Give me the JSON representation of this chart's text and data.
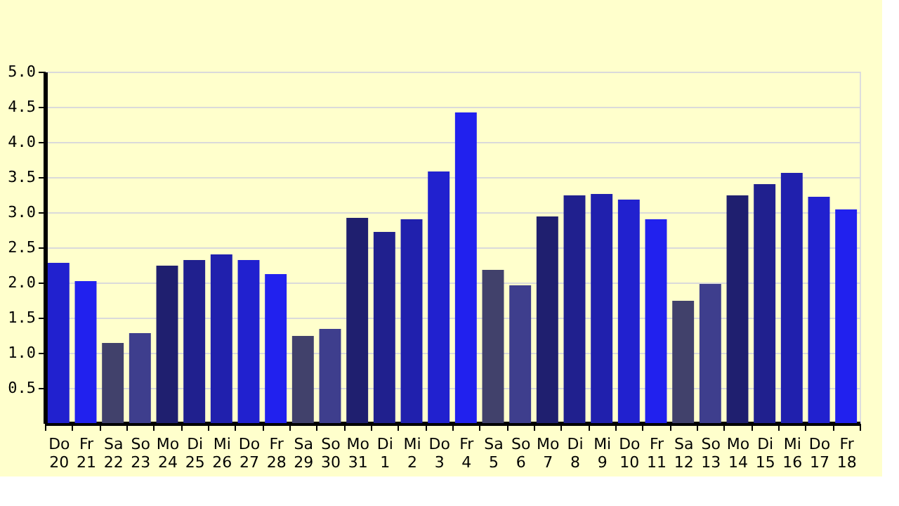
{
  "chart_data": {
    "type": "bar",
    "categories": [
      "Do 20",
      "Fr 21",
      "Sa 22",
      "So 23",
      "Mo 24",
      "Di 25",
      "Mi 26",
      "Do 27",
      "Fr 28",
      "Sa 29",
      "So 30",
      "Mo 31",
      "Di 1",
      "Mi 2",
      "Do 3",
      "Fr 4",
      "Sa 5",
      "So 6",
      "Mo 7",
      "Di 8",
      "Mi 9",
      "Do 10",
      "Fr 11",
      "Sa 12",
      "So 13",
      "Mo 14",
      "Di 15",
      "Mi 16",
      "Do 17",
      "Fr 18"
    ],
    "values": [
      2.28,
      2.02,
      1.14,
      1.28,
      2.24,
      2.32,
      2.4,
      2.32,
      2.12,
      1.24,
      1.34,
      2.92,
      2.72,
      2.9,
      3.58,
      4.42,
      2.18,
      1.96,
      2.94,
      3.24,
      3.26,
      3.18,
      2.9,
      1.74,
      1.98,
      3.24,
      3.4,
      3.56,
      3.22,
      3.04
    ],
    "colors": [
      "#2121cf",
      "#2121ee",
      "#41416b",
      "#3e3e8d",
      "#1f1f6f",
      "#20208e",
      "#2020ad",
      "#2121cf",
      "#2121ee",
      "#41416b",
      "#3e3e8d",
      "#1f1f6f",
      "#20208e",
      "#2020ad",
      "#2121cf",
      "#2121ee",
      "#41416b",
      "#3e3e8d",
      "#1f1f6f",
      "#20208e",
      "#2020ad",
      "#2121cf",
      "#2121ee",
      "#41416b",
      "#3e3e8d",
      "#1f1f6f",
      "#20208e",
      "#2020ad",
      "#2121cf",
      "#2121ee"
    ],
    "ylim": [
      0,
      5
    ],
    "yticks": [
      {
        "value": 0.5,
        "label": "0.5"
      },
      {
        "value": 1,
        "label": "1.0"
      },
      {
        "value": 1.5,
        "label": "1.5"
      },
      {
        "value": 2,
        "label": "2.0"
      },
      {
        "value": 2.5,
        "label": "2.5"
      },
      {
        "value": 3,
        "label": "3.0"
      },
      {
        "value": 3.5,
        "label": "3.5"
      },
      {
        "value": 4,
        "label": "4.0"
      },
      {
        "value": 4.5,
        "label": "4.5"
      },
      {
        "value": 5,
        "label": "5.0"
      }
    ],
    "grid": "y"
  }
}
